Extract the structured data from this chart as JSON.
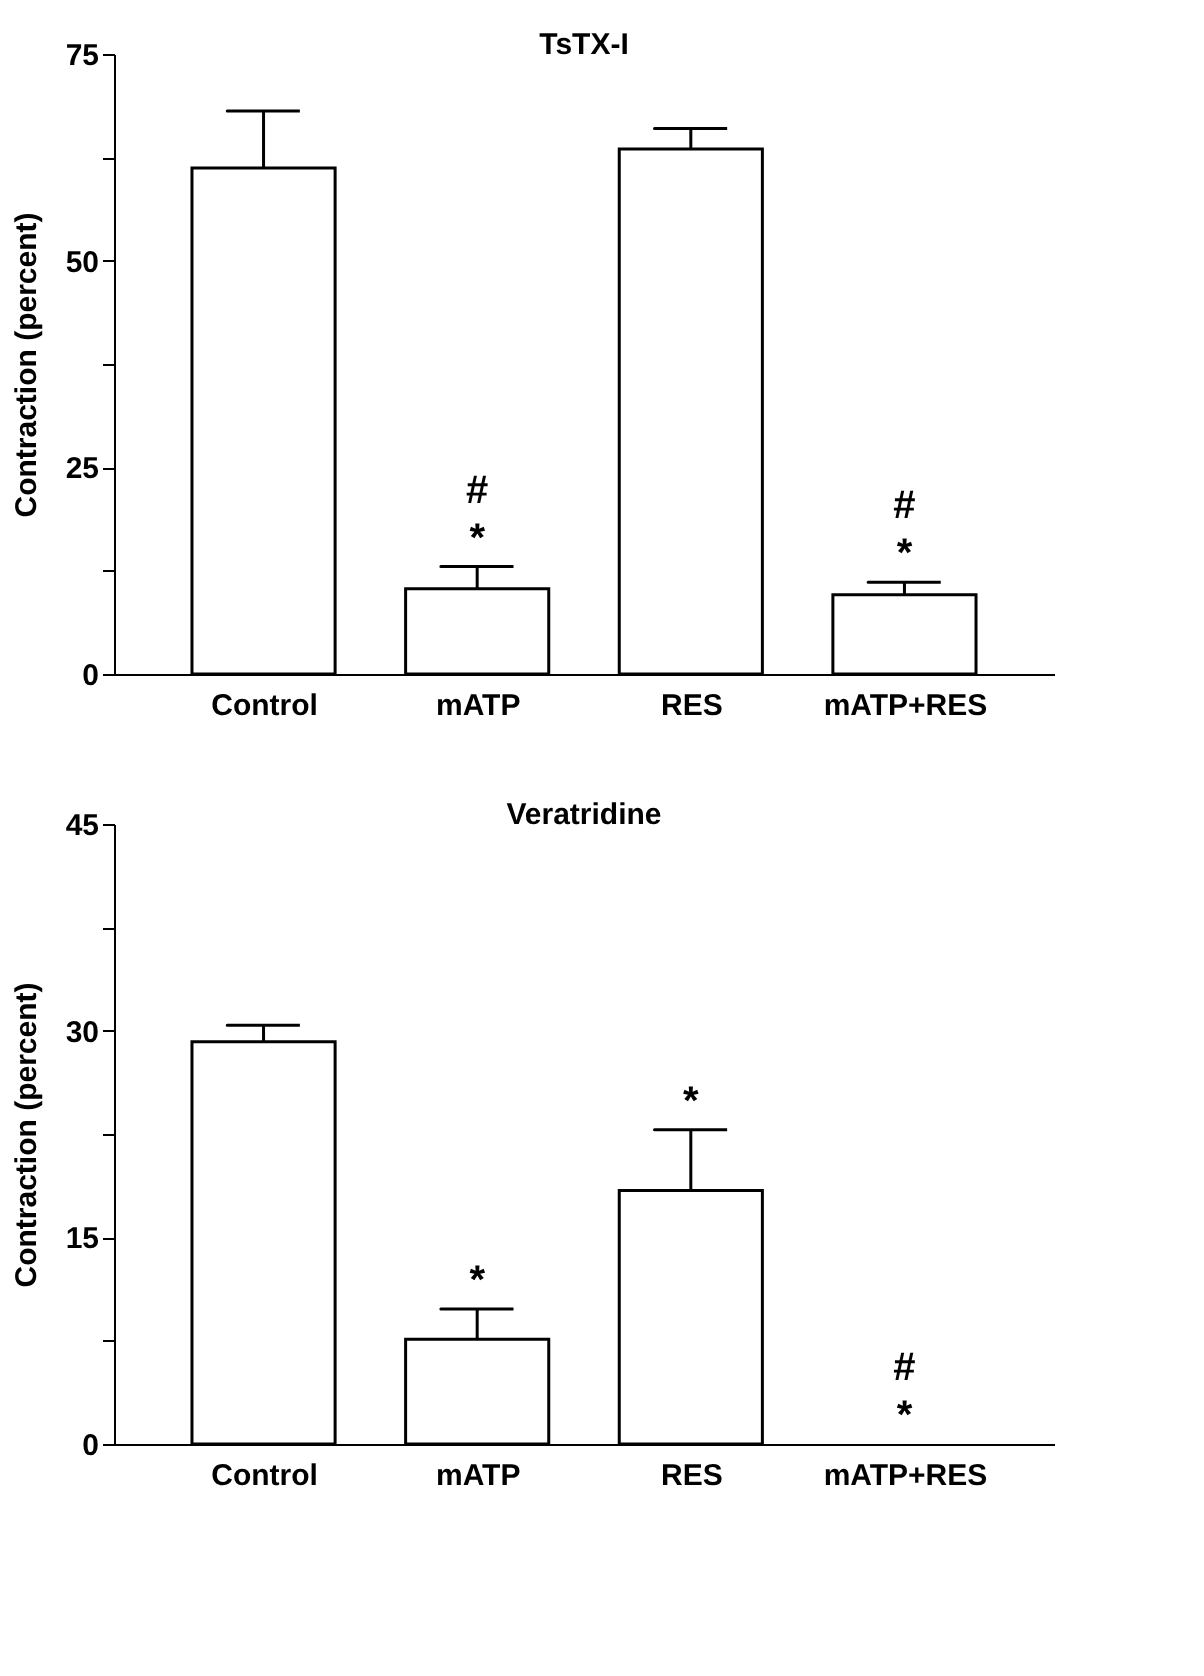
{
  "chart_data": [
    {
      "type": "bar",
      "title": "TsTX-I",
      "ylabel": "Contraction (percent)",
      "categories": [
        "Control",
        "mATP",
        "RES",
        "mATP+RES"
      ],
      "series": [
        {
          "color": "#ffffff",
          "values": [
            61.2,
            10.3,
            63.5,
            9.6
          ],
          "errors": [
            [
              61.2,
              68.1
            ],
            [
              10.3,
              13.0
            ],
            [
              63.5,
              66.0
            ],
            [
              9.6,
              11.1
            ]
          ],
          "value_labels": [
            null,
            "#\n*",
            null,
            "#\n*"
          ]
        }
      ],
      "ylim": [
        0,
        75
      ],
      "yticks": [
        0,
        {
          "value": 12.5,
          "label": null
        },
        25,
        {
          "value": 37.5,
          "label": null
        },
        50,
        {
          "value": 62.5,
          "label": null
        },
        75
      ],
      "grid": false
    },
    {
      "type": "bar",
      "title": "Veratridine",
      "ylabel": "Contraction (percent)",
      "categories": [
        "Control",
        "mATP",
        "RES",
        "mATP+RES"
      ],
      "series": [
        {
          "color": "#ffffff",
          "values": [
            29.2,
            7.6,
            18.4,
            0
          ],
          "errors": [
            [
              29.2,
              30.4
            ],
            [
              7.6,
              9.8
            ],
            [
              18.4,
              22.8
            ],
            null
          ],
          "value_labels": [
            null,
            "*",
            "*",
            "#\n*"
          ]
        }
      ],
      "ylim": [
        0,
        45
      ],
      "yticks": [
        0,
        {
          "value": 7.5,
          "label": null
        },
        15,
        {
          "value": 22.5,
          "label": null
        },
        30,
        {
          "value": 37.5,
          "label": null
        },
        45
      ],
      "grid": false
    }
  ]
}
